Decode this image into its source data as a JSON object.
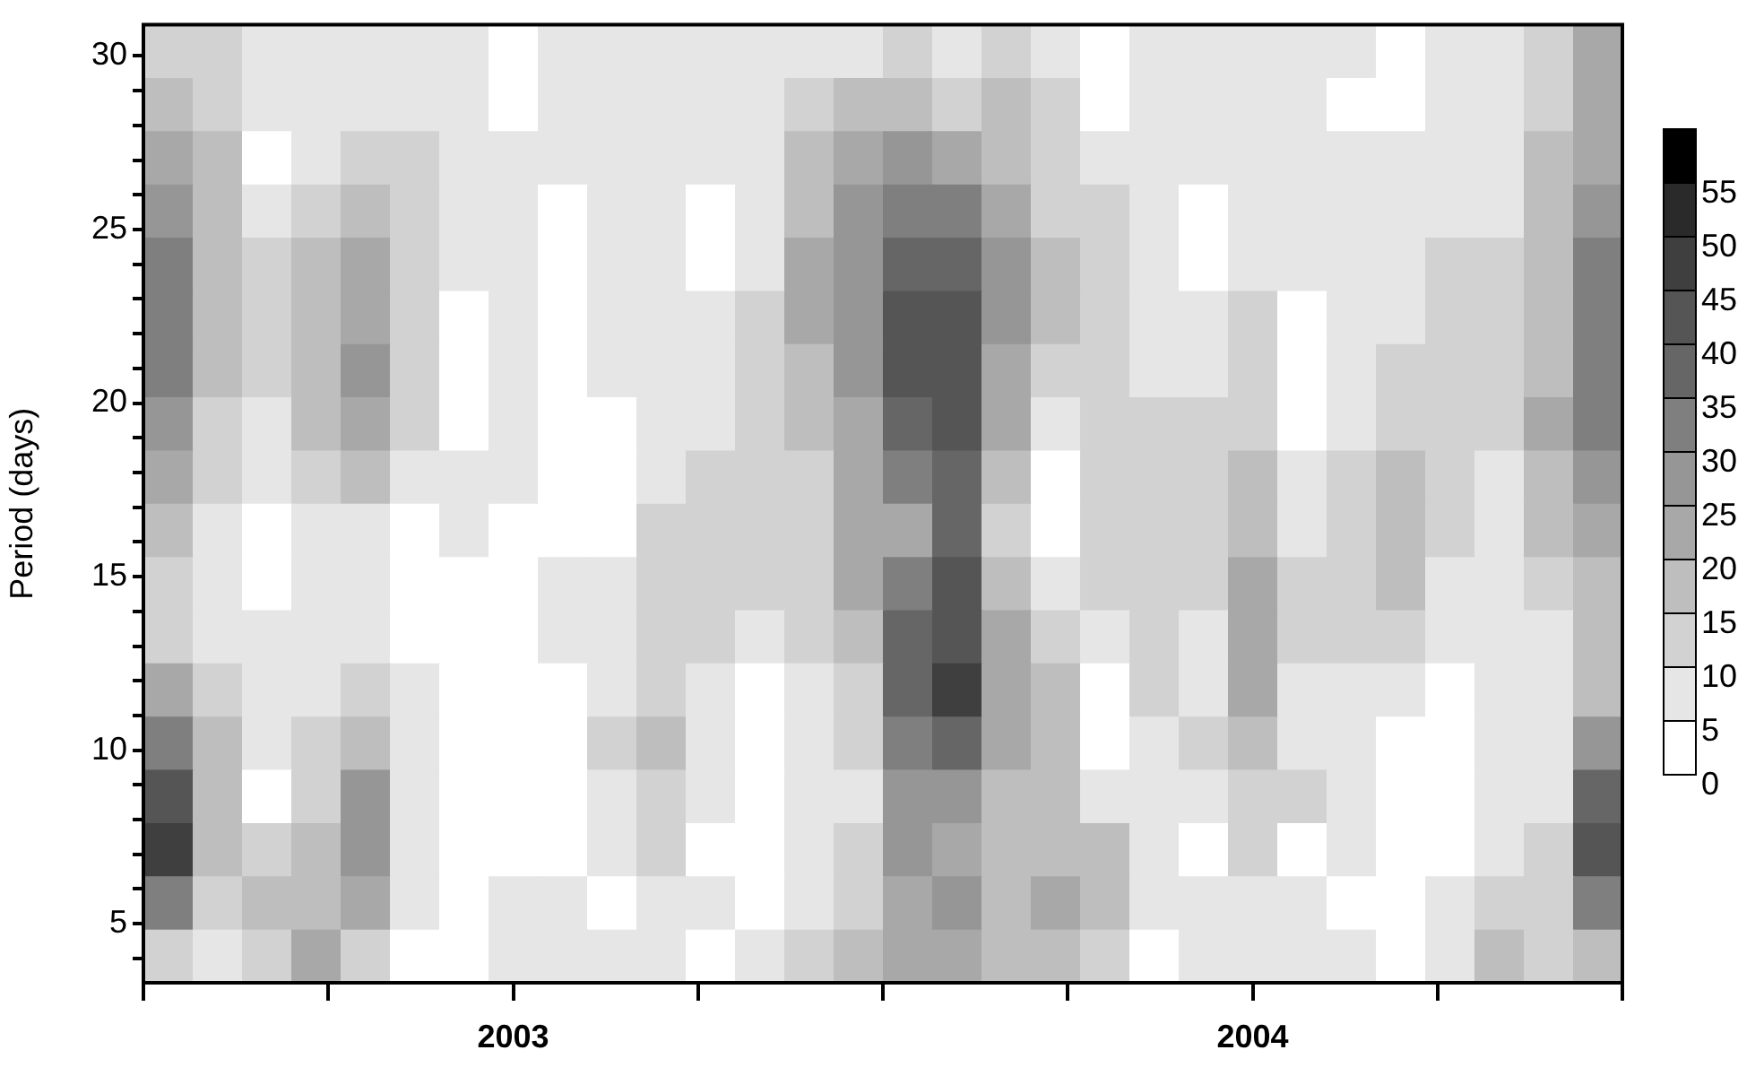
{
  "chart_data": {
    "type": "heatmap",
    "ylabel": "Period (days)",
    "xlim": [
      2003,
      2005
    ],
    "xticks": [
      {
        "value": 2003,
        "label": null
      },
      {
        "value": 2003.25,
        "label": null
      },
      {
        "value": 2003.5,
        "label": "2003"
      },
      {
        "value": 2003.75,
        "label": null
      },
      {
        "value": 2004,
        "label": null
      },
      {
        "value": 2004.25,
        "label": null
      },
      {
        "value": 2004.5,
        "label": "2004"
      },
      {
        "value": 2004.75,
        "label": null
      },
      {
        "value": 2005,
        "label": null
      }
    ],
    "ylim": [
      3.3,
      30.9
    ],
    "yticks": [
      {
        "value": 4,
        "label": null
      },
      5,
      {
        "value": 6,
        "label": null
      },
      {
        "value": 7,
        "label": null
      },
      {
        "value": 8,
        "label": null
      },
      {
        "value": 9,
        "label": null
      },
      10,
      {
        "value": 11,
        "label": null
      },
      {
        "value": 12,
        "label": null
      },
      {
        "value": 13,
        "label": null
      },
      {
        "value": 14,
        "label": null
      },
      15,
      {
        "value": 16,
        "label": null
      },
      {
        "value": 17,
        "label": null
      },
      {
        "value": 18,
        "label": null
      },
      {
        "value": 19,
        "label": null
      },
      20,
      {
        "value": 21,
        "label": null
      },
      {
        "value": 22,
        "label": null
      },
      {
        "value": 23,
        "label": null
      },
      {
        "value": 24,
        "label": null
      },
      25,
      {
        "value": 26,
        "label": null
      },
      {
        "value": 27,
        "label": null
      },
      {
        "value": 28,
        "label": null
      },
      {
        "value": 29,
        "label": null
      },
      30
    ],
    "clim": [
      0,
      60
    ],
    "cticks": [
      0,
      5,
      10,
      15,
      20,
      25,
      30,
      35,
      40,
      45,
      50,
      55
    ],
    "cells": [
      [
        13,
        13,
        8,
        8,
        8,
        8,
        8,
        3,
        8,
        8,
        8,
        8,
        8,
        8,
        8,
        13,
        8,
        13,
        8,
        3,
        8,
        8,
        8,
        8,
        8,
        3,
        8,
        8,
        13,
        23
      ],
      [
        18,
        13,
        8,
        8,
        8,
        8,
        8,
        3,
        8,
        8,
        8,
        8,
        8,
        13,
        18,
        18,
        13,
        18,
        13,
        3,
        8,
        8,
        8,
        8,
        3,
        3,
        8,
        8,
        13,
        23
      ],
      [
        23,
        18,
        3,
        8,
        13,
        13,
        8,
        8,
        8,
        8,
        8,
        8,
        8,
        18,
        23,
        28,
        23,
        18,
        13,
        8,
        8,
        8,
        8,
        8,
        8,
        8,
        8,
        8,
        18,
        23
      ],
      [
        28,
        18,
        8,
        13,
        18,
        13,
        8,
        8,
        3,
        8,
        8,
        3,
        8,
        18,
        28,
        33,
        33,
        23,
        13,
        13,
        8,
        3,
        8,
        8,
        8,
        8,
        8,
        8,
        18,
        28
      ],
      [
        33,
        18,
        13,
        18,
        23,
        13,
        8,
        8,
        3,
        8,
        8,
        3,
        8,
        23,
        28,
        38,
        38,
        28,
        18,
        13,
        8,
        3,
        8,
        8,
        8,
        8,
        13,
        13,
        18,
        33
      ],
      [
        33,
        18,
        13,
        18,
        23,
        13,
        3,
        8,
        3,
        8,
        8,
        8,
        13,
        23,
        28,
        43,
        43,
        28,
        18,
        13,
        8,
        8,
        13,
        3,
        8,
        8,
        13,
        13,
        18,
        33
      ],
      [
        33,
        18,
        13,
        18,
        28,
        13,
        3,
        8,
        3,
        8,
        8,
        8,
        13,
        18,
        28,
        43,
        43,
        23,
        13,
        13,
        8,
        8,
        13,
        3,
        8,
        13,
        13,
        13,
        18,
        33
      ],
      [
        28,
        13,
        8,
        18,
        23,
        13,
        3,
        8,
        3,
        3,
        8,
        8,
        13,
        18,
        23,
        38,
        43,
        23,
        8,
        13,
        13,
        13,
        13,
        3,
        8,
        13,
        13,
        13,
        23,
        33
      ],
      [
        23,
        13,
        8,
        13,
        18,
        8,
        8,
        8,
        3,
        3,
        8,
        13,
        13,
        13,
        23,
        33,
        38,
        18,
        3,
        13,
        13,
        13,
        18,
        8,
        13,
        18,
        13,
        8,
        18,
        28
      ],
      [
        18,
        8,
        3,
        8,
        8,
        3,
        8,
        3,
        3,
        3,
        13,
        13,
        13,
        13,
        23,
        23,
        38,
        13,
        3,
        13,
        13,
        13,
        18,
        8,
        13,
        18,
        13,
        8,
        18,
        23
      ],
      [
        13,
        8,
        3,
        8,
        8,
        3,
        3,
        3,
        8,
        8,
        13,
        13,
        13,
        13,
        23,
        33,
        43,
        18,
        8,
        13,
        13,
        13,
        23,
        13,
        13,
        18,
        8,
        8,
        13,
        18
      ],
      [
        13,
        8,
        8,
        8,
        8,
        3,
        3,
        3,
        8,
        8,
        13,
        13,
        8,
        13,
        18,
        38,
        43,
        23,
        13,
        8,
        13,
        8,
        23,
        13,
        13,
        13,
        8,
        8,
        8,
        18
      ],
      [
        23,
        13,
        8,
        8,
        13,
        8,
        3,
        3,
        3,
        8,
        13,
        8,
        3,
        8,
        13,
        38,
        48,
        23,
        18,
        3,
        13,
        8,
        23,
        8,
        8,
        8,
        3,
        8,
        8,
        18
      ],
      [
        33,
        18,
        8,
        13,
        18,
        8,
        3,
        3,
        3,
        13,
        18,
        8,
        3,
        8,
        13,
        33,
        38,
        23,
        18,
        3,
        8,
        13,
        18,
        8,
        8,
        3,
        3,
        8,
        8,
        28
      ],
      [
        43,
        18,
        3,
        13,
        28,
        8,
        3,
        3,
        3,
        8,
        13,
        8,
        3,
        8,
        8,
        28,
        28,
        18,
        18,
        8,
        8,
        8,
        13,
        13,
        8,
        3,
        3,
        8,
        8,
        38
      ],
      [
        48,
        18,
        13,
        18,
        28,
        8,
        3,
        3,
        3,
        8,
        13,
        3,
        3,
        8,
        13,
        28,
        23,
        18,
        18,
        18,
        8,
        3,
        13,
        3,
        8,
        3,
        3,
        8,
        13,
        43
      ],
      [
        33,
        13,
        18,
        18,
        23,
        8,
        3,
        8,
        8,
        3,
        8,
        8,
        3,
        8,
        13,
        23,
        28,
        18,
        23,
        18,
        8,
        8,
        8,
        8,
        3,
        3,
        8,
        13,
        13,
        33
      ],
      [
        13,
        8,
        13,
        23,
        13,
        3,
        3,
        8,
        8,
        8,
        8,
        3,
        8,
        13,
        18,
        23,
        23,
        18,
        18,
        13,
        3,
        8,
        8,
        8,
        8,
        3,
        8,
        18,
        13,
        18
      ]
    ]
  }
}
